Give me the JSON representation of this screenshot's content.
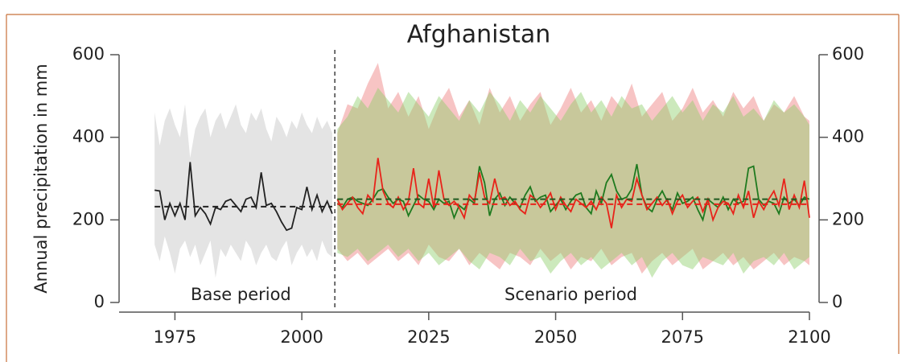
{
  "chart_data": {
    "type": "line",
    "title": "Afghanistan",
    "ylabel": "Annual precipitation in mm",
    "annotations": [
      {
        "text": "Base period",
        "x": 1988
      },
      {
        "text": "Scenario period",
        "x": 2053
      }
    ],
    "divider": 2006.5,
    "xlim": [
      1964,
      2100
    ],
    "ylim": [
      0,
      600
    ],
    "y2lim": [
      0,
      600
    ],
    "xticks": [
      1975,
      2000,
      2025,
      2050,
      2075,
      2100
    ],
    "yticks": [
      0,
      200,
      400,
      600
    ],
    "y2ticks": [
      0,
      200,
      400,
      600
    ],
    "bands": [
      {
        "color": "#e4e4e4",
        "opacity": 1,
        "x": [
          1971,
          1972,
          1973,
          1974,
          1975,
          1976,
          1977,
          1978,
          1979,
          1980,
          1981,
          1982,
          1983,
          1984,
          1985,
          1986,
          1987,
          1988,
          1989,
          1990,
          1991,
          1992,
          1993,
          1994,
          1995,
          1996,
          1997,
          1998,
          1999,
          2000,
          2001,
          2002,
          2003,
          2004,
          2005,
          2006
        ],
        "upper": [
          460,
          380,
          440,
          470,
          430,
          400,
          480,
          350,
          420,
          450,
          470,
          400,
          440,
          460,
          420,
          450,
          480,
          430,
          410,
          460,
          440,
          470,
          420,
          390,
          450,
          430,
          400,
          440,
          420,
          460,
          430,
          410,
          450,
          420,
          440,
          410
        ],
        "lower": [
          140,
          100,
          160,
          120,
          70,
          130,
          150,
          110,
          140,
          90,
          120,
          150,
          60,
          130,
          110,
          140,
          120,
          100,
          150,
          130,
          90,
          120,
          140,
          110,
          100,
          130,
          150,
          90,
          120,
          140,
          110,
          130,
          100,
          150,
          120,
          110
        ]
      },
      {
        "color": "#f08a8a",
        "opacity": 0.5,
        "x": [
          2007,
          2009,
          2011,
          2013,
          2015,
          2017,
          2019,
          2021,
          2023,
          2025,
          2027,
          2029,
          2031,
          2033,
          2035,
          2037,
          2039,
          2041,
          2043,
          2045,
          2047,
          2049,
          2051,
          2053,
          2055,
          2057,
          2059,
          2061,
          2063,
          2065,
          2067,
          2069,
          2071,
          2073,
          2075,
          2077,
          2079,
          2081,
          2083,
          2085,
          2087,
          2089,
          2091,
          2093,
          2095,
          2097,
          2099,
          2100
        ],
        "upper": [
          410,
          480,
          470,
          530,
          580,
          470,
          510,
          450,
          500,
          420,
          480,
          520,
          450,
          490,
          430,
          520,
          460,
          500,
          440,
          480,
          510,
          430,
          470,
          520,
          460,
          490,
          440,
          500,
          470,
          530,
          450,
          480,
          510,
          440,
          470,
          520,
          460,
          490,
          450,
          510,
          470,
          500,
          440,
          480,
          460,
          500,
          450,
          440
        ],
        "lower": [
          130,
          100,
          120,
          90,
          110,
          130,
          100,
          120,
          90,
          140,
          110,
          100,
          130,
          90,
          120,
          100,
          80,
          120,
          110,
          90,
          130,
          100,
          120,
          80,
          110,
          100,
          130,
          90,
          110,
          120,
          70,
          100,
          120,
          90,
          110,
          130,
          80,
          100,
          120,
          90,
          110,
          80,
          100,
          120,
          90,
          110,
          100,
          90
        ]
      },
      {
        "color": "#8fcf6a",
        "opacity": 0.45,
        "x": [
          2007,
          2009,
          2011,
          2013,
          2015,
          2017,
          2019,
          2021,
          2023,
          2025,
          2027,
          2029,
          2031,
          2033,
          2035,
          2037,
          2039,
          2041,
          2043,
          2045,
          2047,
          2049,
          2051,
          2053,
          2055,
          2057,
          2059,
          2061,
          2063,
          2065,
          2067,
          2069,
          2071,
          2073,
          2075,
          2077,
          2079,
          2081,
          2083,
          2085,
          2087,
          2089,
          2091,
          2093,
          2095,
          2097,
          2099,
          2100
        ],
        "upper": [
          420,
          450,
          500,
          470,
          520,
          490,
          460,
          510,
          480,
          450,
          500,
          470,
          440,
          490,
          460,
          510,
          480,
          440,
          490,
          460,
          500,
          470,
          440,
          480,
          510,
          460,
          490,
          450,
          500,
          470,
          480,
          440,
          470,
          500,
          460,
          490,
          440,
          480,
          460,
          500,
          450,
          470,
          440,
          490,
          460,
          480,
          450,
          430
        ],
        "lower": [
          120,
          110,
          130,
          100,
          120,
          140,
          110,
          130,
          100,
          120,
          90,
          110,
          130,
          100,
          80,
          120,
          110,
          90,
          130,
          100,
          110,
          70,
          100,
          120,
          90,
          110,
          80,
          100,
          120,
          90,
          110,
          60,
          100,
          120,
          90,
          80,
          110,
          100,
          90,
          120,
          70,
          100,
          110,
          90,
          120,
          80,
          100,
          110
        ]
      }
    ],
    "series": [
      {
        "color": "#222222",
        "x": [
          1971,
          1972,
          1973,
          1974,
          1975,
          1976,
          1977,
          1978,
          1979,
          1980,
          1981,
          1982,
          1983,
          1984,
          1985,
          1986,
          1987,
          1988,
          1989,
          1990,
          1991,
          1992,
          1993,
          1994,
          1995,
          1996,
          1997,
          1998,
          1999,
          2000,
          2001,
          2002,
          2003,
          2004,
          2005,
          2006
        ],
        "values": [
          272,
          270,
          200,
          240,
          210,
          240,
          200,
          340,
          210,
          230,
          215,
          190,
          230,
          225,
          245,
          250,
          235,
          220,
          250,
          255,
          230,
          315,
          235,
          240,
          220,
          195,
          175,
          180,
          230,
          225,
          280,
          225,
          260,
          220,
          245,
          215
        ]
      },
      {
        "color": "#1f7a1f",
        "x": [
          2007,
          2008,
          2009,
          2010,
          2011,
          2012,
          2013,
          2014,
          2015,
          2016,
          2017,
          2018,
          2019,
          2020,
          2021,
          2022,
          2023,
          2024,
          2025,
          2026,
          2027,
          2028,
          2029,
          2030,
          2031,
          2032,
          2033,
          2034,
          2035,
          2036,
          2037,
          2038,
          2039,
          2040,
          2041,
          2042,
          2043,
          2044,
          2045,
          2046,
          2047,
          2048,
          2049,
          2050,
          2051,
          2052,
          2053,
          2054,
          2055,
          2056,
          2057,
          2058,
          2059,
          2060,
          2061,
          2062,
          2063,
          2064,
          2065,
          2066,
          2067,
          2068,
          2069,
          2070,
          2071,
          2072,
          2073,
          2074,
          2075,
          2076,
          2077,
          2078,
          2079,
          2080,
          2081,
          2082,
          2083,
          2084,
          2085,
          2086,
          2087,
          2088,
          2089,
          2090,
          2091,
          2092,
          2093,
          2094,
          2095,
          2096,
          2097,
          2098,
          2099,
          2100
        ],
        "values": [
          240,
          230,
          250,
          255,
          245,
          240,
          235,
          250,
          270,
          275,
          255,
          240,
          250,
          245,
          210,
          235,
          260,
          250,
          245,
          225,
          250,
          240,
          245,
          205,
          235,
          225,
          250,
          240,
          330,
          290,
          210,
          250,
          265,
          235,
          255,
          240,
          230,
          260,
          280,
          245,
          255,
          260,
          220,
          235,
          250,
          225,
          245,
          260,
          265,
          230,
          215,
          270,
          240,
          290,
          310,
          270,
          250,
          255,
          275,
          335,
          260,
          230,
          220,
          250,
          270,
          245,
          225,
          265,
          240,
          245,
          255,
          225,
          200,
          250,
          240,
          230,
          255,
          225,
          250,
          240,
          245,
          325,
          330,
          250,
          235,
          245,
          240,
          215,
          255,
          240,
          250,
          235,
          255,
          250
        ]
      },
      {
        "color": "#e8231a",
        "x": [
          2007,
          2008,
          2009,
          2010,
          2011,
          2012,
          2013,
          2014,
          2015,
          2016,
          2017,
          2018,
          2019,
          2020,
          2021,
          2022,
          2023,
          2024,
          2025,
          2026,
          2027,
          2028,
          2029,
          2030,
          2031,
          2032,
          2033,
          2034,
          2035,
          2036,
          2037,
          2038,
          2039,
          2040,
          2041,
          2042,
          2043,
          2044,
          2045,
          2046,
          2047,
          2048,
          2049,
          2050,
          2051,
          2052,
          2053,
          2054,
          2055,
          2056,
          2057,
          2058,
          2059,
          2060,
          2061,
          2062,
          2063,
          2064,
          2065,
          2066,
          2067,
          2068,
          2069,
          2070,
          2071,
          2072,
          2073,
          2074,
          2075,
          2076,
          2077,
          2078,
          2079,
          2080,
          2081,
          2082,
          2083,
          2084,
          2085,
          2086,
          2087,
          2088,
          2089,
          2090,
          2091,
          2092,
          2093,
          2094,
          2095,
          2096,
          2097,
          2098,
          2099,
          2100
        ],
        "values": [
          250,
          225,
          240,
          255,
          230,
          215,
          260,
          245,
          350,
          270,
          240,
          230,
          255,
          225,
          245,
          325,
          240,
          230,
          300,
          230,
          320,
          250,
          235,
          245,
          230,
          205,
          260,
          245,
          315,
          255,
          240,
          300,
          250,
          255,
          235,
          245,
          225,
          215,
          260,
          250,
          230,
          245,
          265,
          225,
          255,
          235,
          220,
          250,
          240,
          230,
          245,
          225,
          255,
          240,
          180,
          260,
          230,
          250,
          245,
          300,
          260,
          225,
          240,
          255,
          235,
          250,
          215,
          245,
          260,
          230,
          245,
          255,
          220,
          250,
          200,
          230,
          245,
          240,
          215,
          260,
          230,
          270,
          205,
          245,
          225,
          250,
          270,
          235,
          300,
          225,
          260,
          230,
          295,
          205
        ]
      }
    ],
    "mean_lines": [
      {
        "color": "#222222",
        "x": [
          1971,
          2006
        ],
        "value": 232
      },
      {
        "color": "#1f5a1f",
        "x": [
          2007,
          2100
        ],
        "value": 250
      },
      {
        "color": "#e8231a",
        "x": [
          2007,
          2100
        ],
        "value": 238
      }
    ]
  }
}
